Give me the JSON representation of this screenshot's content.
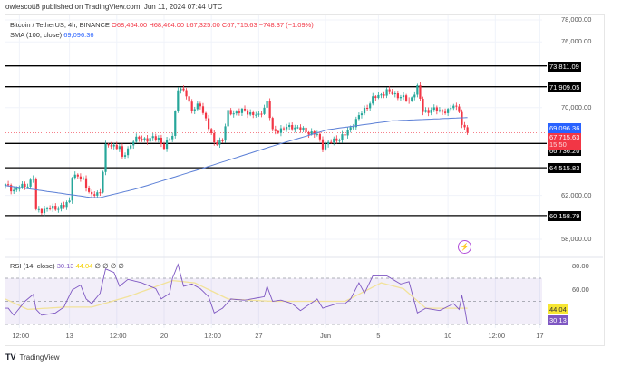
{
  "published": "owiescott8 published on TradingView.com, Jun 11, 2024 07:44 UTC",
  "legend": {
    "symbol": "Bitcoin / TetherUS, 4h, BINANCE",
    "open": "O68,464.00",
    "high": "H68,464.00",
    "low": "L67,325.00",
    "close": "C67,715.63",
    "change": "−748.37 (−1.09%)",
    "sma_label": "SMA (100, close)",
    "sma_value": "69,096.36"
  },
  "rsi_legend": {
    "label": "RSI (14, close)",
    "rsi": "30.13",
    "ma": "44.04",
    "extras": [
      "∅",
      "∅",
      "∅",
      "∅"
    ]
  },
  "price_axis": [
    "78,000.00",
    "76,000.00",
    "70,000.00",
    "62,000.00",
    "58,000.00"
  ],
  "price_axis_values": [
    78000,
    76000,
    70000,
    62000,
    58000
  ],
  "rsi_axis": [
    "80.00",
    "60.00"
  ],
  "rsi_axis_values": [
    80,
    60
  ],
  "time_axis": [
    "12:00",
    "13",
    "12:00",
    "20",
    "12:00",
    "27",
    "Jun",
    "5",
    "10",
    "12:00",
    "17"
  ],
  "time_axis_bars": [
    5,
    23,
    40,
    57,
    74,
    91,
    115,
    134,
    159,
    176,
    192
  ],
  "levels": [
    {
      "value": 73811.09,
      "label": "73,811.09"
    },
    {
      "value": 71909.05,
      "label": "71,909.05"
    },
    {
      "value": 66736.2,
      "label": "66,736.20"
    },
    {
      "value": 64515.83,
      "label": "64,515.83"
    },
    {
      "value": 60158.79,
      "label": "60,158.79"
    }
  ],
  "current_price": {
    "label": "67,715.63",
    "countdown": "15:50",
    "value": 67715.63
  },
  "sma_tag": "69,096.36",
  "rsi_tags": {
    "ma": "44.04",
    "rsi": "30.13"
  },
  "footer": "TradingView",
  "colors": {
    "up": "#26a69a",
    "down": "#f23645",
    "sma": "#5b7fd6",
    "rsi": "#7e57c2",
    "rsi_ma": "#f2e29a",
    "level": "#000000"
  },
  "chart_data": {
    "type": "candlestick",
    "symbol": "BTC/USDT 4h",
    "ylim": [
      57000,
      79000
    ],
    "close_keypoints": [
      [
        0,
        62900
      ],
      [
        3,
        62500
      ],
      [
        8,
        63000
      ],
      [
        10,
        63600
      ],
      [
        11,
        60600
      ],
      [
        21,
        61000
      ],
      [
        23,
        61500
      ],
      [
        24,
        63900
      ],
      [
        28,
        63400
      ],
      [
        31,
        61900
      ],
      [
        34,
        62300
      ],
      [
        36,
        66500
      ],
      [
        41,
        66500
      ],
      [
        42,
        65300
      ],
      [
        46,
        67100
      ],
      [
        55,
        67200
      ],
      [
        57,
        66400
      ],
      [
        60,
        67500
      ],
      [
        62,
        71800
      ],
      [
        65,
        71200
      ],
      [
        67,
        69800
      ],
      [
        70,
        70200
      ],
      [
        72,
        69000
      ],
      [
        75,
        66700
      ],
      [
        78,
        67100
      ],
      [
        80,
        69500
      ],
      [
        86,
        69700
      ],
      [
        91,
        69200
      ],
      [
        94,
        70500
      ],
      [
        96,
        67800
      ],
      [
        103,
        68300
      ],
      [
        112,
        67500
      ],
      [
        114,
        66500
      ],
      [
        122,
        67500
      ],
      [
        127,
        69200
      ],
      [
        132,
        70800
      ],
      [
        137,
        71500
      ],
      [
        142,
        71000
      ],
      [
        145,
        70600
      ],
      [
        148,
        71800
      ],
      [
        150,
        69700
      ],
      [
        155,
        69800
      ],
      [
        159,
        69600
      ],
      [
        161,
        70300
      ],
      [
        163,
        69800
      ],
      [
        164,
        68300
      ],
      [
        165,
        68000
      ],
      [
        166,
        67715.63
      ]
    ],
    "sma_keypoints": [
      [
        0,
        62900
      ],
      [
        31,
        61800
      ],
      [
        34,
        61800
      ],
      [
        47,
        62600
      ],
      [
        70,
        64400
      ],
      [
        96,
        66500
      ],
      [
        116,
        68000
      ],
      [
        139,
        68800
      ],
      [
        166,
        69096.36
      ]
    ],
    "rsi": {
      "ylim": [
        20,
        90
      ],
      "bands": [
        70,
        50,
        30
      ],
      "rsi_keypoints": [
        [
          0,
          44
        ],
        [
          1,
          44
        ],
        [
          3,
          38
        ],
        [
          5,
          44
        ],
        [
          7,
          50
        ],
        [
          10,
          56
        ],
        [
          11,
          43
        ],
        [
          13,
          38
        ],
        [
          18,
          40
        ],
        [
          21,
          45
        ],
        [
          24,
          60
        ],
        [
          27,
          64
        ],
        [
          29,
          52
        ],
        [
          31,
          48
        ],
        [
          34,
          57
        ],
        [
          36,
          78
        ],
        [
          39,
          75
        ],
        [
          41,
          63
        ],
        [
          44,
          69
        ],
        [
          49,
          66
        ],
        [
          54,
          61
        ],
        [
          56,
          52
        ],
        [
          59,
          57
        ],
        [
          60,
          70
        ],
        [
          62,
          82
        ],
        [
          64,
          63
        ],
        [
          67,
          65
        ],
        [
          70,
          61
        ],
        [
          73,
          54
        ],
        [
          75,
          40
        ],
        [
          78,
          44
        ],
        [
          81,
          52
        ],
        [
          86,
          51
        ],
        [
          93,
          54
        ],
        [
          94,
          63
        ],
        [
          96,
          50
        ],
        [
          99,
          51
        ],
        [
          103,
          48
        ],
        [
          106,
          42
        ],
        [
          112,
          52
        ],
        [
          114,
          44
        ],
        [
          119,
          48
        ],
        [
          122,
          48
        ],
        [
          124,
          52
        ],
        [
          127,
          66
        ],
        [
          129,
          57
        ],
        [
          132,
          72
        ],
        [
          135,
          72
        ],
        [
          137,
          72
        ],
        [
          142,
          65
        ],
        [
          145,
          67
        ],
        [
          148,
          40
        ],
        [
          151,
          44
        ],
        [
          156,
          42
        ],
        [
          161,
          48
        ],
        [
          163,
          43
        ],
        [
          164,
          55
        ],
        [
          165,
          44
        ],
        [
          166,
          30.13
        ]
      ],
      "ma_keypoints": [
        [
          0,
          52
        ],
        [
          8,
          43
        ],
        [
          21,
          45
        ],
        [
          31,
          45
        ],
        [
          44,
          54
        ],
        [
          60,
          68
        ],
        [
          68,
          66
        ],
        [
          80,
          52
        ],
        [
          96,
          50
        ],
        [
          109,
          50
        ],
        [
          122,
          50
        ],
        [
          135,
          66
        ],
        [
          143,
          61
        ],
        [
          151,
          44
        ],
        [
          166,
          44.04
        ]
      ]
    }
  }
}
